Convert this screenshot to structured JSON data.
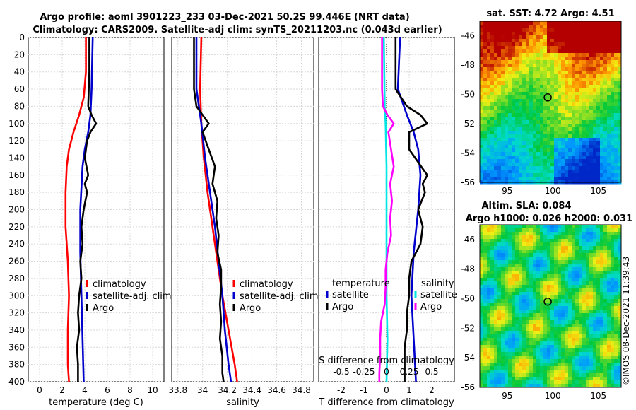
{
  "header": {
    "line1": "Argo profile: aoml 3901223_233 03-Dec-2021 50.2S 99.446E (NRT data)",
    "line2": "Climatology: CARS2009. Satellite-adj clim: synTS_20211203.nc (0.043d earlier)"
  },
  "colors": {
    "climatology": "#ff0000",
    "satellite": "#0000cc",
    "argo": "#000000",
    "s_diff": "#ff00ff",
    "t_diff": "#00e5e5"
  },
  "chart_data": [
    {
      "type": "line",
      "id": "temperature",
      "xlabel": "temperature (deg C)",
      "ylabel": "depth",
      "xlim": [
        -1,
        11
      ],
      "ylim": [
        400,
        0
      ],
      "xticks": [
        "0",
        "2",
        "4",
        "6",
        "8",
        "10"
      ],
      "yticks": [
        "0",
        "20",
        "40",
        "60",
        "80",
        "100",
        "120",
        "140",
        "160",
        "180",
        "200",
        "220",
        "240",
        "260",
        "280",
        "300",
        "320",
        "340",
        "360",
        "380",
        "400"
      ],
      "legend": [
        "climatology",
        "satellite-adj. clim",
        "Argo"
      ],
      "series": [
        {
          "name": "climatology",
          "depth": [
            0,
            40,
            70,
            90,
            110,
            130,
            150,
            180,
            220,
            260,
            300,
            340,
            380,
            400
          ],
          "values": [
            4.1,
            4.1,
            3.9,
            3.5,
            3.0,
            2.6,
            2.4,
            2.3,
            2.3,
            2.5,
            2.6,
            2.5,
            2.5,
            2.6
          ]
        },
        {
          "name": "satellite-adj. clim",
          "depth": [
            0,
            60,
            90,
            110,
            130,
            150,
            200,
            250,
            300,
            350,
            400
          ],
          "values": [
            4.7,
            4.6,
            4.5,
            4.3,
            4.0,
            3.8,
            3.6,
            3.6,
            3.7,
            3.8,
            3.9
          ]
        },
        {
          "name": "Argo",
          "depth": [
            0,
            40,
            80,
            90,
            100,
            110,
            120,
            140,
            160,
            170,
            180,
            200,
            220,
            240,
            260,
            280,
            300,
            320,
            340,
            360,
            380,
            400
          ],
          "values": [
            4.4,
            4.4,
            4.3,
            4.6,
            5.0,
            4.5,
            4.2,
            4.0,
            4.3,
            4.0,
            4.2,
            3.9,
            3.7,
            3.8,
            3.6,
            3.7,
            3.5,
            3.4,
            3.5,
            3.3,
            3.4,
            3.4
          ]
        }
      ]
    },
    {
      "type": "line",
      "id": "salinity",
      "xlabel": "salinity",
      "xlim": [
        33.75,
        34.9
      ],
      "ylim": [
        400,
        0
      ],
      "xticks": [
        "33.8",
        "34",
        "34.2",
        "34.4",
        "34.6",
        "34.8"
      ],
      "legend": [
        "climatology",
        "satellite-adj. clim",
        "Argo"
      ],
      "series": [
        {
          "name": "climatology",
          "depth": [
            0,
            60,
            100,
            140,
            180,
            220,
            260,
            300,
            340,
            380,
            400
          ],
          "values": [
            33.99,
            33.98,
            33.99,
            34.01,
            34.04,
            34.08,
            34.12,
            34.16,
            34.21,
            34.26,
            34.28
          ]
        },
        {
          "name": "satellite-adj. clim",
          "depth": [
            0,
            60,
            100,
            140,
            180,
            220,
            260,
            300,
            340,
            380,
            400
          ],
          "values": [
            33.95,
            33.95,
            33.99,
            34.02,
            34.06,
            34.1,
            34.13,
            34.16,
            34.18,
            34.21,
            34.23
          ]
        },
        {
          "name": "Argo",
          "depth": [
            0,
            60,
            80,
            90,
            100,
            110,
            130,
            150,
            170,
            190,
            210,
            230,
            250,
            270,
            290,
            310,
            330,
            350,
            370,
            390,
            400
          ],
          "values": [
            33.93,
            33.93,
            33.95,
            34.0,
            34.05,
            34.0,
            34.05,
            34.1,
            34.08,
            34.12,
            34.11,
            34.13,
            34.12,
            34.15,
            34.15,
            34.14,
            34.15,
            34.14,
            34.16,
            34.16,
            34.17
          ]
        }
      ]
    },
    {
      "type": "line",
      "id": "differences",
      "xlabel": "T difference from climatology",
      "xlabel_top": "S difference from climatology",
      "xlim": [
        -3,
        3
      ],
      "ylim": [
        400,
        0
      ],
      "xticks": [
        "-2",
        "-1",
        "0",
        "1",
        "2"
      ],
      "xticks_top": [
        "-0.5",
        "-0.25",
        "0",
        "0.25",
        "0.5"
      ],
      "legend_left_title": "temperature",
      "legend_left": [
        "satellite",
        "Argo"
      ],
      "legend_right_title": "salinity",
      "legend_right": [
        "satellite",
        "Argo"
      ],
      "series": [
        {
          "name": "temperature satellite",
          "depth": [
            0,
            60,
            90,
            110,
            130,
            160,
            200,
            250,
            300,
            350,
            400
          ],
          "values": [
            0.6,
            0.5,
            0.9,
            1.2,
            1.4,
            1.5,
            1.4,
            1.2,
            1.1,
            1.2,
            1.3
          ]
        },
        {
          "name": "temperature Argo",
          "depth": [
            0,
            60,
            80,
            90,
            100,
            110,
            130,
            160,
            170,
            180,
            200,
            220,
            240,
            260,
            280,
            300,
            320,
            340,
            360,
            380,
            400
          ],
          "values": [
            0.4,
            0.4,
            0.9,
            1.5,
            1.8,
            1.0,
            1.0,
            1.8,
            1.6,
            1.7,
            1.4,
            1.6,
            1.5,
            1.1,
            1.0,
            1.0,
            0.9,
            0.9,
            0.8,
            0.8,
            0.8
          ]
        },
        {
          "name": "salinity satellite",
          "depth": [
            0,
            80,
            100,
            150,
            200,
            250,
            300,
            350,
            400
          ],
          "values": [
            -0.03,
            -0.02,
            -0.01,
            0.0,
            0.0,
            0.0,
            0.0,
            0.01,
            0.0
          ]
        },
        {
          "name": "salinity Argo",
          "depth": [
            0,
            60,
            80,
            90,
            100,
            110,
            130,
            150,
            170,
            190,
            210,
            230,
            250,
            270,
            290,
            310,
            330,
            350,
            370,
            390,
            400
          ],
          "values": [
            -0.05,
            -0.05,
            -0.04,
            0.01,
            0.08,
            0.02,
            0.05,
            0.08,
            0.04,
            0.06,
            0.04,
            0.05,
            0.01,
            -0.01,
            -0.01,
            -0.02,
            -0.06,
            -0.07,
            -0.07,
            -0.08,
            -0.08
          ]
        }
      ]
    },
    {
      "type": "heatmap",
      "id": "sst_map",
      "title": "sat. SST: 4.72 Argo: 4.51",
      "xlim": [
        92,
        107.5
      ],
      "ylim": [
        -56,
        -45
      ],
      "xticks": [
        "95",
        "100",
        "105"
      ],
      "yticks": [
        "-46",
        "-48",
        "-50",
        "-52",
        "-54",
        "-56"
      ],
      "marker": {
        "lon": 99.446,
        "lat": -50.2
      }
    },
    {
      "type": "heatmap",
      "id": "sla_map",
      "title": "Altim. SLA: 0.084",
      "subtitle": "Argo h1000: 0.026 h2000: 0.031",
      "xlim": [
        92,
        107.5
      ],
      "ylim": [
        -56,
        -45
      ],
      "xticks": [
        "95",
        "100",
        "105"
      ],
      "yticks": [
        "-46",
        "-48",
        "-50",
        "-52",
        "-54",
        "-56"
      ],
      "marker": {
        "lon": 99.446,
        "lat": -50.2
      }
    }
  ],
  "footer": {
    "timestamp": "©IMOS 08-Dec-2021 11:39:43"
  }
}
